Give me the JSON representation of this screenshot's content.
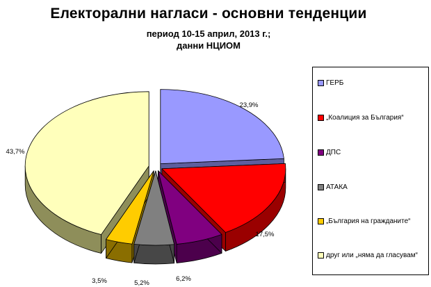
{
  "title": "Електорални нагласи - основни тенденции",
  "subtitle_line1": "период 10-15 април, 2013 г.;",
  "subtitle_line2": "данни НЦИОМ",
  "chart_data": {
    "type": "pie",
    "style": "3d-exploded",
    "legend_position": "right",
    "series": [
      {
        "name": "ГЕРБ",
        "value": 23.9,
        "label": "23,9%",
        "color": "#9999FF",
        "side_color": "#5E5E9E"
      },
      {
        "name": "„Коалиция за България“",
        "value": 17.5,
        "label": "17,5%",
        "color": "#FF0000",
        "side_color": "#9A0000"
      },
      {
        "name": "ДПС",
        "value": 6.2,
        "label": "6,2%",
        "color": "#800080",
        "side_color": "#4C004C"
      },
      {
        "name": "АТАКА",
        "value": 5.2,
        "label": "5,2%",
        "color": "#808080",
        "side_color": "#474747"
      },
      {
        "name": "„България на гражданите“",
        "value": 3.5,
        "label": "3,5%",
        "color": "#FFCC00",
        "side_color": "#8A6E00"
      },
      {
        "name": "друг или „няма да гласувам“",
        "value": 43.7,
        "label": "43,7%",
        "color": "#FFFFBB",
        "side_color": "#8E8E5A"
      }
    ]
  }
}
